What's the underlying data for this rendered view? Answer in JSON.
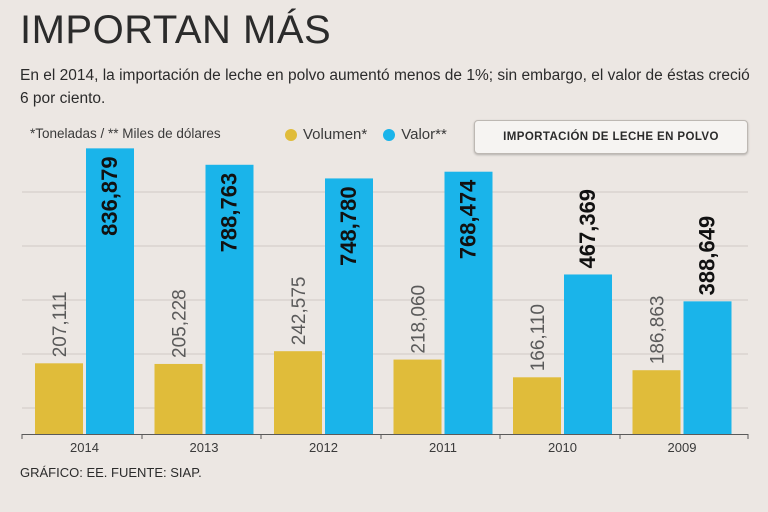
{
  "header": {
    "title": "IMPORTAN MÁS",
    "subtitle": "En el 2014, la importación de leche en polvo aumentó menos de 1%; sin embargo, el valor de éstas creció 6 por ciento."
  },
  "units_note": "*Toneladas / ** Miles de dólares",
  "badge": "IMPORTACIÓN DE LECHE EN POLVO",
  "footer": "GRÁFICO: EE. FUENTE: SIAP.",
  "colors": {
    "volumen": "#e0bc3a",
    "valor": "#1ab4ea",
    "background": "#ece7e3",
    "grid": "#cfc9c4"
  },
  "chart_data": {
    "type": "bar",
    "title": "IMPORTACIÓN DE LECHE EN POLVO",
    "categories": [
      "2014",
      "2013",
      "2012",
      "2011",
      "2010",
      "2009"
    ],
    "series": [
      {
        "name": "Volumen*",
        "values": [
          207111,
          205228,
          242575,
          218060,
          166110,
          186863
        ],
        "labels": [
          "207,111",
          "205,228",
          "242,575",
          "218,060",
          "166,110",
          "186,863"
        ]
      },
      {
        "name": "Valor**",
        "values": [
          836879,
          788763,
          748780,
          768474,
          467369,
          388649
        ],
        "labels": [
          "836,879",
          "788,763",
          "748,780",
          "768,474",
          "467,369",
          "388,649"
        ]
      }
    ],
    "xlabel": "",
    "ylabel": "",
    "ylim": [
      0,
      850000
    ],
    "grid": true,
    "legend": "top"
  }
}
